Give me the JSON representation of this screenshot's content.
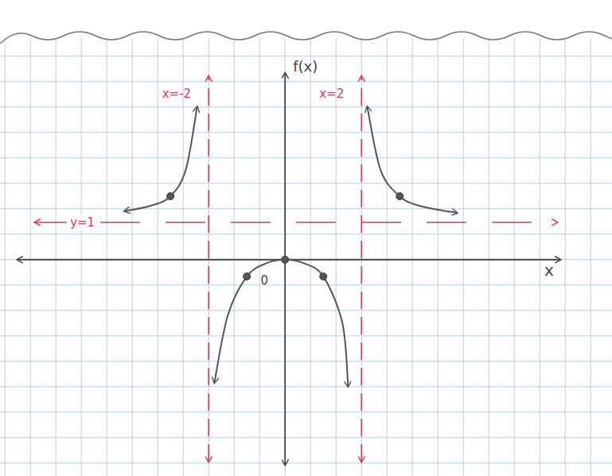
{
  "chart_data": {
    "type": "line",
    "x_label": "x",
    "y_label": "f(x)",
    "xlim": [
      -7,
      7.2
    ],
    "ylim": [
      -5.5,
      5
    ],
    "tick_labels": false,
    "x": [
      -4.2,
      -3.5,
      -3,
      -2.6,
      -2.3,
      -2,
      -1.85,
      -1.5,
      -1,
      -0.5,
      0,
      0.5,
      1,
      1.5,
      1.65,
      2,
      2.15,
      2.5,
      3,
      3.5,
      4.5
    ],
    "series": [
      {
        "type": "line",
        "color": "#555555",
        "line_style": "solid",
        "values": [
          1.3,
          1.45,
          1.7,
          2.4,
          4.1,
          null,
          -3.3,
          -1.5,
          -0.45,
          -0.1,
          0,
          -0.1,
          -0.45,
          -1.7,
          -3.4,
          null,
          4.1,
          2.4,
          1.7,
          1.45,
          1.25
        ]
      },
      {
        "type": "scatter",
        "color": "#555555",
        "marker": "circle",
        "values": [
          null,
          null,
          1.7,
          null,
          null,
          null,
          null,
          null,
          -0.45,
          null,
          0,
          null,
          -0.45,
          null,
          null,
          null,
          null,
          null,
          1.7,
          null,
          null
        ]
      }
    ],
    "asymptotes": [
      {
        "label": "x=-2",
        "x": -2
      },
      {
        "label": "x=2",
        "x": 2
      },
      {
        "label": "y=1",
        "y": 1
      }
    ],
    "annotations": [
      {
        "text": "0",
        "x": -0.54,
        "y": -0.53
      }
    ]
  }
}
